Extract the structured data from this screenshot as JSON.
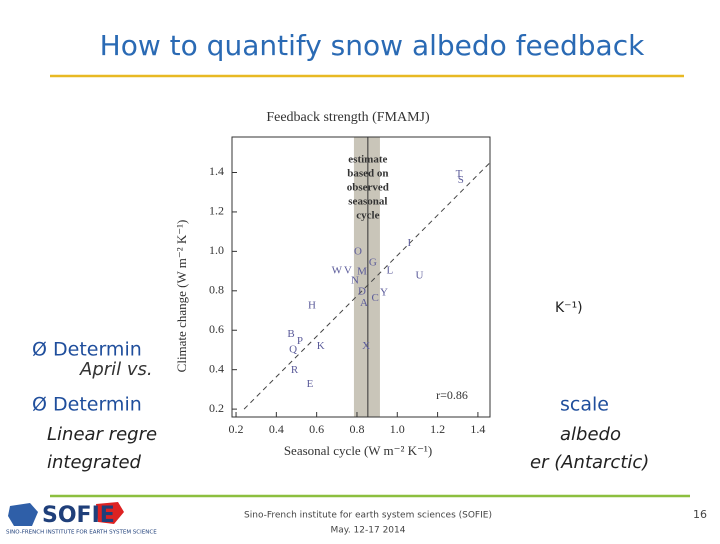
{
  "slide": {
    "title": "How to quantify snow albedo feedback",
    "fragments": [
      "K⁻¹)",
      "Ø Determin",
      "April vs.",
      "Ø Determin",
      "scale",
      "Linear regre",
      "albedo",
      "integrated",
      "er (Antarctic)"
    ]
  },
  "footer": {
    "logo": "SOFIE",
    "logo_tagline": "SINO-FRENCH INSTITUTE FOR EARTH SYSTEM SCIENCE",
    "institute": "Sino-French institute for earth system sciences (SOFIE)",
    "date": "May. 12-17 2014",
    "page": "16"
  },
  "chart_data": {
    "type": "scatter",
    "title": "Feedback strength (FMAMJ)",
    "x_label": "Seasonal cycle (W m⁻² K⁻¹)",
    "y_label": "Climate change (W m⁻² K⁻¹)",
    "xlim": [
      0.18,
      1.46
    ],
    "ylim": [
      0.16,
      1.58
    ],
    "xticks": [
      0.2,
      0.4,
      0.6,
      0.8,
      {
        "value": 1,
        "label": "1.0"
      },
      1.2,
      1.4
    ],
    "yticks": [
      0.2,
      0.4,
      0.6,
      0.8,
      {
        "value": 1,
        "label": "1.0"
      },
      1.2,
      1.4
    ],
    "labels": [
      "T",
      "S",
      "O",
      "G",
      "W",
      "V",
      "M",
      "N",
      "L",
      "U",
      "D",
      "C",
      "Y",
      "A",
      "H",
      "B",
      "P",
      "Q",
      "K",
      "X",
      "R",
      "E",
      "I"
    ],
    "x": [
      1.306,
      1.315,
      0.805,
      0.879,
      0.7,
      0.755,
      0.825,
      0.79,
      0.963,
      1.11,
      0.825,
      0.89,
      0.934,
      0.835,
      0.577,
      0.473,
      0.517,
      0.483,
      0.62,
      0.845,
      0.49,
      0.567,
      1.06
    ],
    "y": [
      1.39,
      1.36,
      0.997,
      0.94,
      0.9,
      0.9,
      0.896,
      0.85,
      0.9,
      0.876,
      0.795,
      0.76,
      0.79,
      0.735,
      0.724,
      0.578,
      0.543,
      0.5,
      0.518,
      0.518,
      0.397,
      0.326,
      1.04
    ],
    "color": "#5b5b9a",
    "fit_line": {
      "x": [
        0.24,
        1.46
      ],
      "y": [
        0.2,
        1.45
      ]
    },
    "observed_range": [
      0.785,
      0.914
    ],
    "observed_estimate": 0.854,
    "annotation": [
      "estimate",
      "based on",
      "observed",
      "seasonal",
      "cycle"
    ],
    "r_label": "r=0.86"
  }
}
